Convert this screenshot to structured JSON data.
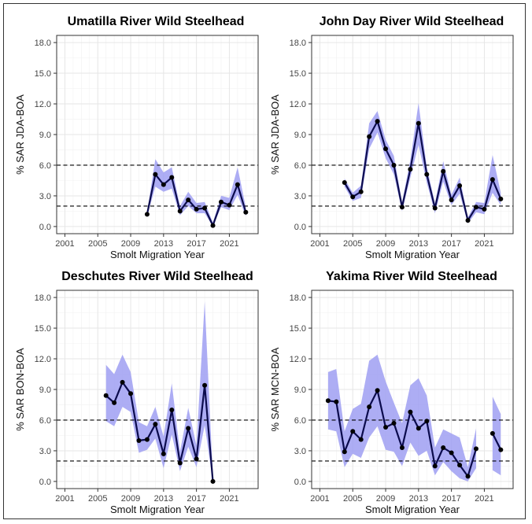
{
  "chart_data": [
    {
      "type": "line",
      "title": "Umatilla River Wild Steelhead",
      "xlabel": "Smolt Migration Year",
      "ylabel": "% SAR JDA-BOA",
      "xticks": [
        2001,
        2005,
        2009,
        2013,
        2017,
        2021
      ],
      "yticks": [
        0.0,
        3.0,
        6.0,
        9.0,
        12.0,
        15.0,
        18.0
      ],
      "ytick_labels": [
        "0.0",
        "3.0",
        "6.0",
        "9.0",
        "12.0",
        "15.0",
        "18.0"
      ],
      "xlim": [
        2000,
        2024.5
      ],
      "ylim": [
        -0.7,
        18.7
      ],
      "reference_lines": [
        2,
        6
      ],
      "segments": [
        {
          "x": [
            2011,
            2012,
            2013,
            2014,
            2015,
            2016,
            2017,
            2018,
            2019,
            2020,
            2021,
            2022,
            2023
          ],
          "y": [
            1.2,
            5.1,
            4.1,
            4.8,
            1.5,
            2.6,
            1.7,
            1.8,
            0.1,
            2.4,
            2.1,
            4.1,
            1.4
          ],
          "lower": [
            1.0,
            3.9,
            3.4,
            3.7,
            1.1,
            2.0,
            1.3,
            1.3,
            0.0,
            1.9,
            1.6,
            3.1,
            1.0
          ],
          "upper": [
            1.4,
            6.6,
            5.3,
            5.8,
            2.0,
            3.4,
            2.3,
            2.4,
            0.4,
            3.0,
            2.8,
            5.8,
            1.9
          ]
        }
      ]
    },
    {
      "type": "line",
      "title": "John Day River Wild Steelhead",
      "xlabel": "Smolt Migration Year",
      "ylabel": "% SAR JDA-BOA",
      "xticks": [
        2001,
        2005,
        2009,
        2013,
        2017,
        2021
      ],
      "yticks": [
        0.0,
        3.0,
        6.0,
        9.0,
        12.0,
        15.0,
        18.0
      ],
      "ytick_labels": [
        "0.0",
        "3.0",
        "6.0",
        "9.0",
        "12.0",
        "15.0",
        "18.0"
      ],
      "xlim": [
        2000,
        2024.5
      ],
      "ylim": [
        -0.7,
        18.7
      ],
      "reference_lines": [
        2,
        6
      ],
      "segments": [
        {
          "x": [
            2004,
            2005,
            2006,
            2007,
            2008,
            2009,
            2010,
            2011,
            2012,
            2013,
            2014,
            2015,
            2016,
            2017,
            2018,
            2019,
            2020,
            2021,
            2022,
            2023
          ],
          "y": [
            4.3,
            2.9,
            3.4,
            8.8,
            10.3,
            7.6,
            6.0,
            1.9,
            5.6,
            10.1,
            5.1,
            1.8,
            5.4,
            2.6,
            4.0,
            0.6,
            1.9,
            1.7,
            4.6,
            2.7
          ],
          "lower": [
            3.9,
            2.5,
            2.8,
            7.6,
            9.2,
            6.7,
            5.1,
            1.5,
            4.8,
            8.0,
            4.3,
            1.3,
            4.4,
            2.1,
            3.2,
            0.3,
            1.4,
            1.2,
            3.3,
            2.1
          ],
          "upper": [
            4.7,
            3.3,
            4.0,
            10.1,
            11.3,
            8.5,
            6.9,
            2.4,
            6.5,
            12.1,
            5.8,
            2.3,
            6.4,
            3.1,
            4.8,
            0.9,
            2.4,
            2.3,
            7.0,
            3.3
          ]
        }
      ]
    },
    {
      "type": "line",
      "title": "Deschutes River Wild Steelhead",
      "xlabel": "Smolt Migration Year",
      "ylabel": "% SAR BON-BOA",
      "xticks": [
        2001,
        2005,
        2009,
        2013,
        2017,
        2021
      ],
      "yticks": [
        0.0,
        3.0,
        6.0,
        9.0,
        12.0,
        15.0,
        18.0
      ],
      "ytick_labels": [
        "0.0",
        "3.0",
        "6.0",
        "9.0",
        "12.0",
        "15.0",
        "18.0"
      ],
      "xlim": [
        2000,
        2024.5
      ],
      "ylim": [
        -0.7,
        18.7
      ],
      "reference_lines": [
        2,
        6
      ],
      "segments": [
        {
          "x": [
            2006,
            2007,
            2008,
            2009,
            2010,
            2011,
            2012,
            2013,
            2014,
            2015,
            2016,
            2017,
            2018,
            2019
          ],
          "y": [
            8.4,
            7.7,
            9.7,
            8.6,
            4.0,
            4.1,
            5.6,
            2.7,
            7.0,
            1.8,
            5.2,
            2.2,
            9.4,
            0.0
          ],
          "lower": [
            5.9,
            5.4,
            7.3,
            6.8,
            2.8,
            3.1,
            4.2,
            1.3,
            4.6,
            1.0,
            3.4,
            1.4,
            5.5,
            0.0
          ],
          "upper": [
            11.4,
            10.5,
            12.4,
            10.7,
            5.8,
            5.4,
            7.3,
            4.4,
            9.6,
            2.9,
            7.2,
            3.5,
            17.6,
            0.5
          ]
        }
      ]
    },
    {
      "type": "line",
      "title": "Yakima River Wild Steelhead",
      "xlabel": "Smolt Migration Year",
      "ylabel": "% SAR MCN-BOA",
      "xticks": [
        2001,
        2005,
        2009,
        2013,
        2017,
        2021
      ],
      "yticks": [
        0.0,
        3.0,
        6.0,
        9.0,
        12.0,
        15.0,
        18.0
      ],
      "ytick_labels": [
        "0.0",
        "3.0",
        "6.0",
        "9.0",
        "12.0",
        "15.0",
        "18.0"
      ],
      "xlim": [
        2000,
        2024.5
      ],
      "ylim": [
        -0.7,
        18.7
      ],
      "reference_lines": [
        2,
        6
      ],
      "segments": [
        {
          "x": [
            2002,
            2003,
            2004,
            2005,
            2006,
            2007,
            2008,
            2009,
            2010,
            2011,
            2012,
            2013,
            2014,
            2015,
            2016,
            2017,
            2018,
            2019,
            2020
          ],
          "y": [
            7.9,
            7.8,
            2.9,
            4.9,
            4.1,
            7.3,
            8.9,
            5.3,
            5.7,
            3.3,
            6.8,
            5.2,
            5.9,
            1.5,
            3.3,
            2.8,
            1.6,
            0.5,
            3.2
          ],
          "lower": [
            5.1,
            4.9,
            1.4,
            2.7,
            2.3,
            4.3,
            5.4,
            3.1,
            2.9,
            1.5,
            3.8,
            2.5,
            3.0,
            0.6,
            1.9,
            1.0,
            0.3,
            0.0,
            1.3
          ],
          "upper": [
            10.7,
            11.0,
            4.9,
            7.1,
            7.6,
            11.8,
            12.4,
            9.8,
            7.7,
            5.7,
            9.4,
            10.1,
            8.4,
            3.3,
            5.1,
            4.7,
            4.3,
            1.4,
            5.2
          ]
        },
        {
          "x": [
            2022,
            2023
          ],
          "y": [
            4.7,
            3.1
          ],
          "lower": [
            1.1,
            0.6
          ],
          "upper": [
            8.3,
            6.6
          ]
        }
      ]
    }
  ],
  "colors": {
    "line": "#0b0b4d",
    "point": "#000000",
    "ribbon": "#9f9ff2",
    "grid_major": "#e6e6e6",
    "grid_minor": "#f3f3f3",
    "panel_border": "#333333",
    "reference_line": "#000000"
  }
}
